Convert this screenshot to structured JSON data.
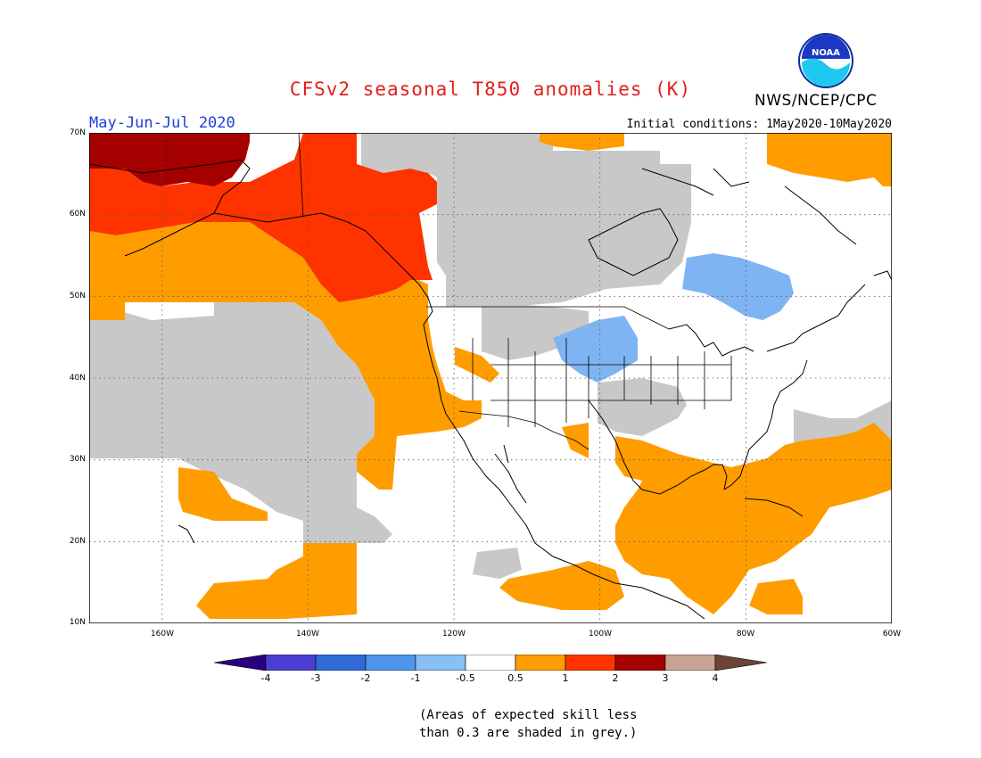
{
  "title": "CFSv2 seasonal T850 anomalies (K)",
  "period": "May-Jun-Jul 2020",
  "initial_conditions": "Initial conditions: 1May2020-10May2020",
  "agency": "NWS/NCEP/CPC",
  "logo_text": "NOAA",
  "lat_labels": [
    "70N",
    "60N",
    "50N",
    "40N",
    "30N",
    "20N",
    "10N"
  ],
  "lon_labels": [
    "160W",
    "140W",
    "120W",
    "100W",
    "80W",
    "60W"
  ],
  "colorbar": {
    "ticks": [
      "-4",
      "-3",
      "-2",
      "-1",
      "-0.5",
      "0.5",
      "1",
      "2",
      "3",
      "4"
    ],
    "colors": [
      "#2a0080",
      "#4b3ed0",
      "#2f6ad8",
      "#4e95ec",
      "#88bff5",
      "#ffffff",
      "#ff9d00",
      "#ff3300",
      "#a50000",
      "#c9a393",
      "#6a4436"
    ]
  },
  "note": [
    "(Areas of expected skill less",
    "than 0.3 are shaded in grey.)"
  ],
  "map": {
    "extent": {
      "lon_min": -170,
      "lon_max": -60,
      "lat_min": 10,
      "lat_max": 70
    },
    "colors": {
      "grey": "#c8c8c8",
      "orange": "#ff9d00",
      "red": "#ff3300",
      "dark_red": "#a50000",
      "light_blue": "#7fb4f2"
    }
  }
}
